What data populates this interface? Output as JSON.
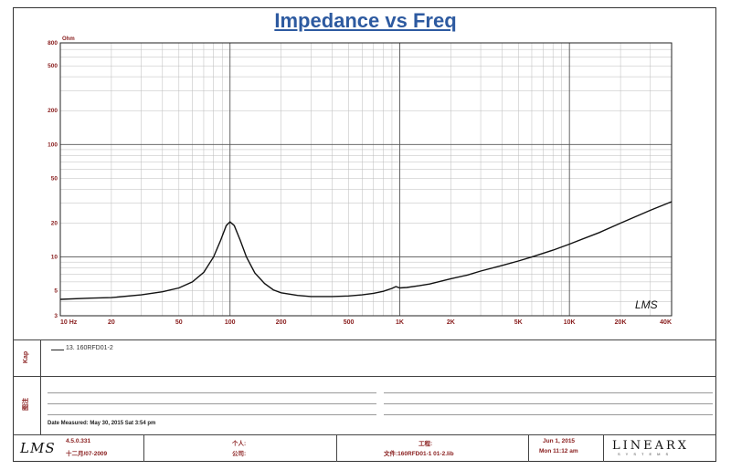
{
  "chart_data": {
    "type": "line",
    "title": "Impedance vs Freq",
    "y_unit": "Ohm",
    "x_scale": "log",
    "y_scale": "log",
    "xlim": [
      10,
      40000
    ],
    "ylim": [
      3,
      800
    ],
    "x_tick_labels": [
      {
        "value": 10,
        "label": "10 Hz"
      },
      {
        "value": 20,
        "label": "20"
      },
      {
        "value": 50,
        "label": "50"
      },
      {
        "value": 100,
        "label": "100"
      },
      {
        "value": 200,
        "label": "200"
      },
      {
        "value": 500,
        "label": "500"
      },
      {
        "value": 1000,
        "label": "1K"
      },
      {
        "value": 2000,
        "label": "2K"
      },
      {
        "value": 5000,
        "label": "5K"
      },
      {
        "value": 10000,
        "label": "10K"
      },
      {
        "value": 20000,
        "label": "20K"
      },
      {
        "value": 40000,
        "label": "40K"
      }
    ],
    "y_tick_labels": [
      {
        "value": 3,
        "label": "3"
      },
      {
        "value": 5,
        "label": "5"
      },
      {
        "value": 10,
        "label": "10"
      },
      {
        "value": 20,
        "label": "20"
      },
      {
        "value": 50,
        "label": "50"
      },
      {
        "value": 100,
        "label": "100"
      },
      {
        "value": 200,
        "label": "200"
      },
      {
        "value": 500,
        "label": "500"
      },
      {
        "value": 800,
        "label": "800"
      }
    ],
    "grid": true,
    "series": [
      {
        "name": "13. 160RFD01-2",
        "color": "#111111",
        "points": [
          [
            10,
            4.2
          ],
          [
            15,
            4.3
          ],
          [
            20,
            4.35
          ],
          [
            30,
            4.6
          ],
          [
            40,
            4.9
          ],
          [
            50,
            5.3
          ],
          [
            60,
            6.0
          ],
          [
            70,
            7.3
          ],
          [
            80,
            10.0
          ],
          [
            88,
            14.0
          ],
          [
            95,
            19.0
          ],
          [
            100,
            20.5
          ],
          [
            106,
            19.0
          ],
          [
            115,
            14.0
          ],
          [
            125,
            10.0
          ],
          [
            140,
            7.2
          ],
          [
            160,
            5.8
          ],
          [
            180,
            5.1
          ],
          [
            200,
            4.8
          ],
          [
            250,
            4.55
          ],
          [
            300,
            4.45
          ],
          [
            400,
            4.45
          ],
          [
            500,
            4.5
          ],
          [
            600,
            4.6
          ],
          [
            700,
            4.75
          ],
          [
            800,
            4.95
          ],
          [
            900,
            5.25
          ],
          [
            950,
            5.45
          ],
          [
            1000,
            5.3
          ],
          [
            1100,
            5.35
          ],
          [
            1300,
            5.55
          ],
          [
            1500,
            5.75
          ],
          [
            2000,
            6.4
          ],
          [
            2500,
            6.9
          ],
          [
            3000,
            7.5
          ],
          [
            4000,
            8.4
          ],
          [
            5000,
            9.2
          ],
          [
            6000,
            10.0
          ],
          [
            8000,
            11.5
          ],
          [
            10000,
            13.0
          ],
          [
            15000,
            16.5
          ],
          [
            20000,
            20.0
          ],
          [
            30000,
            26.0
          ],
          [
            40000,
            31.0
          ]
        ]
      }
    ]
  },
  "legend_entry": "13. 160RFD01-2",
  "watermark": "LMS",
  "side_labels": {
    "top": "Kap",
    "bottom": "图注"
  },
  "notes": {
    "date_measured": "Date Measured: May 30, 2015  Sat  3:54 pm"
  },
  "footer": {
    "logo": "LMS",
    "version": "4.5.0.331",
    "version_date": "十二月/07-2009",
    "person_label": "个人:",
    "company_label": "公司:",
    "project_label": "工程:",
    "file_label": "文件:160RFD01-1  01-2.lib",
    "date": "Jun  1, 2015",
    "time": "Mon 11:12 am",
    "brand": "LINEARX",
    "brand_sub": "SYSTEMS"
  }
}
